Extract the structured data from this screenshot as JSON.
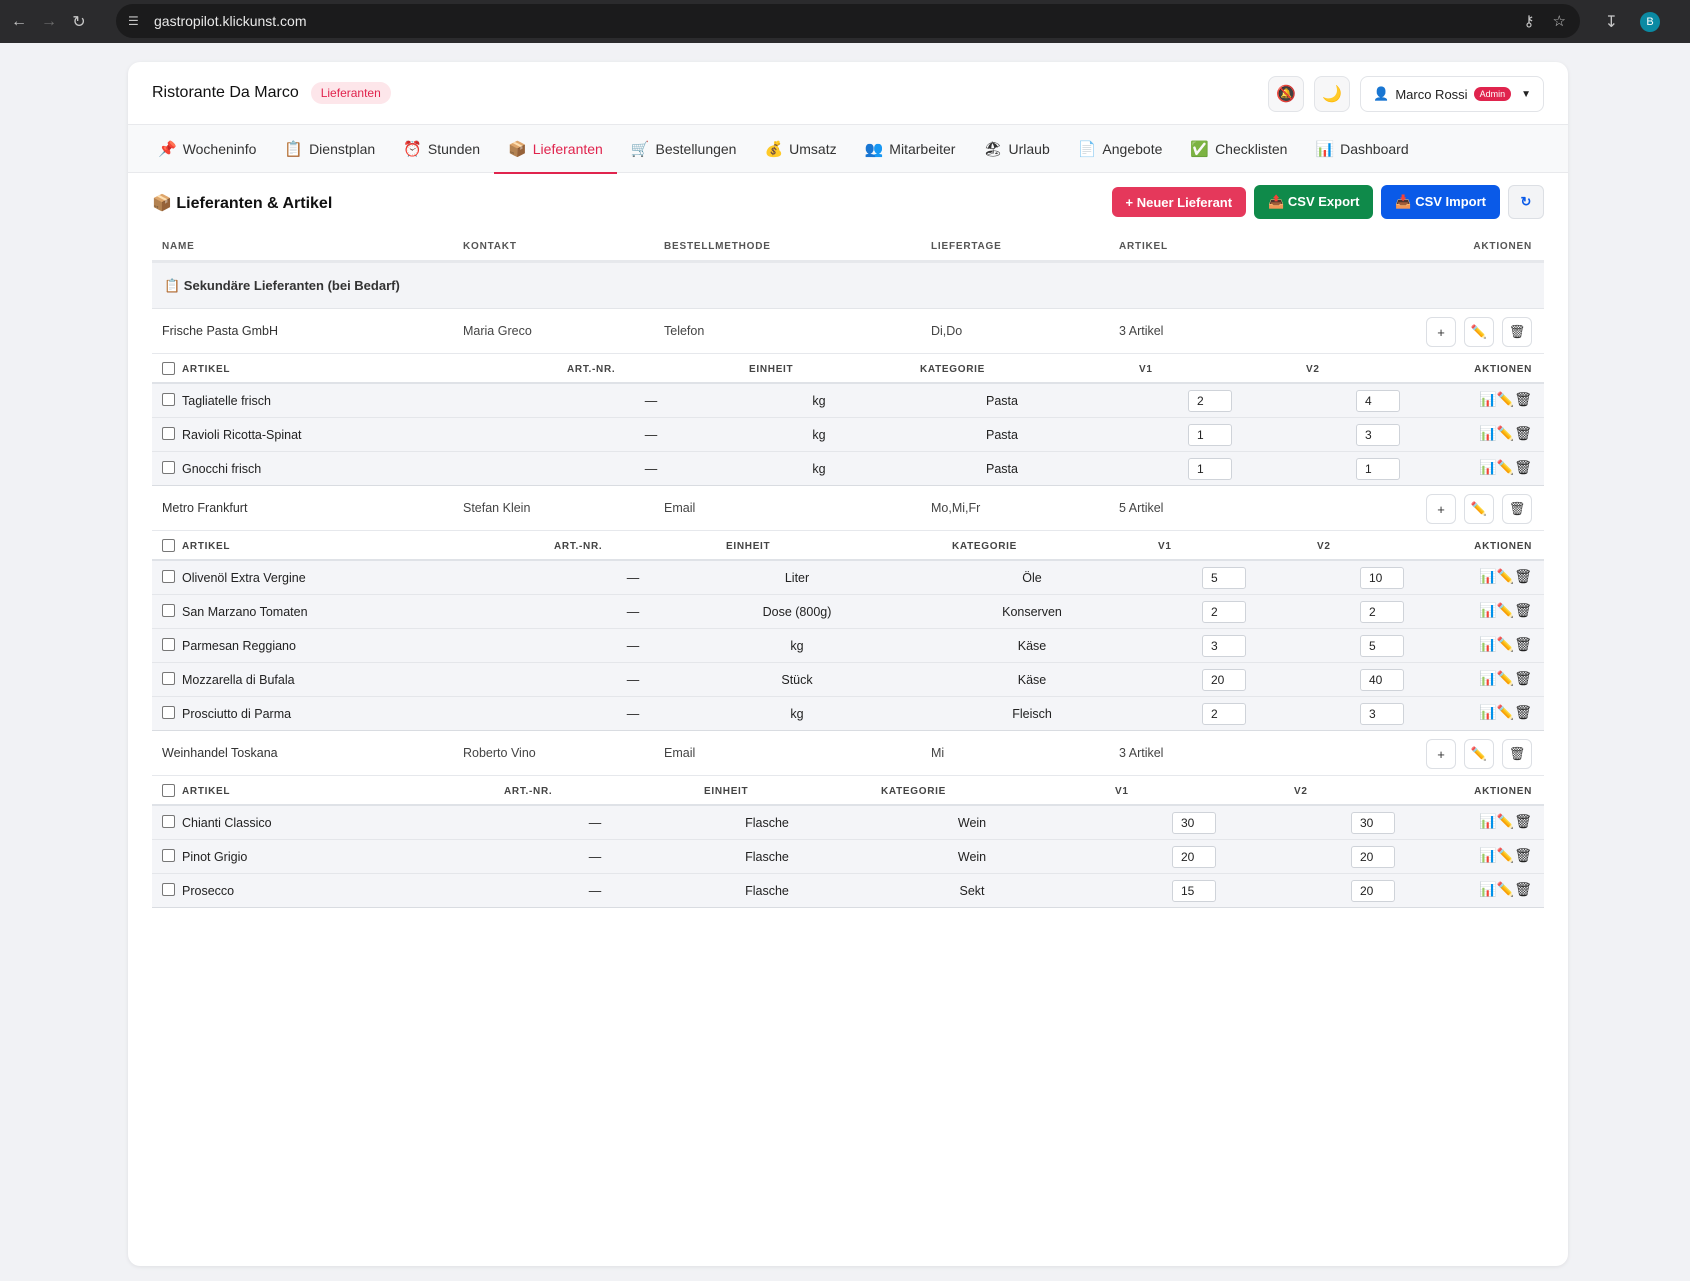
{
  "browser": {
    "url": "gastropilot.klickunst.com",
    "profile_initial": "B"
  },
  "header": {
    "restaurant": "Ristorante Da Marco",
    "page_badge": "Lieferanten",
    "user_name": "Marco Rossi",
    "user_role": "Admin"
  },
  "tabs": [
    {
      "icon": "📌",
      "label": "Wocheninfo"
    },
    {
      "icon": "📋",
      "label": "Dienstplan"
    },
    {
      "icon": "⏰",
      "label": "Stunden"
    },
    {
      "icon": "📦",
      "label": "Lieferanten"
    },
    {
      "icon": "🛒",
      "label": "Bestellungen"
    },
    {
      "icon": "💰",
      "label": "Umsatz"
    },
    {
      "icon": "👥",
      "label": "Mitarbeiter"
    },
    {
      "icon": "🏖",
      "label": "Urlaub"
    },
    {
      "icon": "📄",
      "label": "Angebote"
    },
    {
      "icon": "✅",
      "label": "Checklisten"
    },
    {
      "icon": "📊",
      "label": "Dashboard"
    }
  ],
  "section": {
    "title": "📦 Lieferanten & Artikel",
    "btn_new": "+ Neuer Lieferant",
    "btn_export": "📤 CSV Export",
    "btn_import": "📥 CSV Import"
  },
  "columns": {
    "name": "NAME",
    "kontakt": "KONTAKT",
    "methode": "BESTELLMETHODE",
    "liefertage": "LIEFERTAGE",
    "artikel": "ARTIKEL",
    "aktionen": "AKTIONEN"
  },
  "group_label": "📋 Sekundäre Lieferanten (bei Bedarf)",
  "article_columns": {
    "artikel": "ARTIKEL",
    "artnr": "ART.-NR.",
    "einheit": "EINHEIT",
    "kategorie": "KATEGORIE",
    "v1": "V1",
    "v2": "V2",
    "aktionen": "AKTIONEN"
  },
  "suppliers": [
    {
      "name": "Frische Pasta GmbH",
      "kontakt": "Maria Greco",
      "methode": "Telefon",
      "liefertage": "Di,Do",
      "artikel_count": "3 Artikel",
      "articles": [
        {
          "name": "Tagliatelle frisch",
          "artnr": "—",
          "einheit": "kg",
          "kategorie": "Pasta",
          "v1": "2",
          "v2": "4"
        },
        {
          "name": "Ravioli Ricotta-Spinat",
          "artnr": "—",
          "einheit": "kg",
          "kategorie": "Pasta",
          "v1": "1",
          "v2": "3"
        },
        {
          "name": "Gnocchi frisch",
          "artnr": "—",
          "einheit": "kg",
          "kategorie": "Pasta",
          "v1": "1",
          "v2": "1"
        }
      ]
    },
    {
      "name": "Metro Frankfurt",
      "kontakt": "Stefan Klein",
      "methode": "Email",
      "liefertage": "Mo,Mi,Fr",
      "artikel_count": "5 Artikel",
      "articles": [
        {
          "name": "Olivenöl Extra Vergine",
          "artnr": "—",
          "einheit": "Liter",
          "kategorie": "Öle",
          "v1": "5",
          "v2": "10"
        },
        {
          "name": "San Marzano Tomaten",
          "artnr": "—",
          "einheit": "Dose (800g)",
          "kategorie": "Konserven",
          "v1": "2",
          "v2": "2"
        },
        {
          "name": "Parmesan Reggiano",
          "artnr": "—",
          "einheit": "kg",
          "kategorie": "Käse",
          "v1": "3",
          "v2": "5"
        },
        {
          "name": "Mozzarella di Bufala",
          "artnr": "—",
          "einheit": "Stück",
          "kategorie": "Käse",
          "v1": "20",
          "v2": "40"
        },
        {
          "name": "Prosciutto di Parma",
          "artnr": "—",
          "einheit": "kg",
          "kategorie": "Fleisch",
          "v1": "2",
          "v2": "3"
        }
      ]
    },
    {
      "name": "Weinhandel Toskana",
      "kontakt": "Roberto Vino",
      "methode": "Email",
      "liefertage": "Mi",
      "artikel_count": "3 Artikel",
      "articles": [
        {
          "name": "Chianti Classico",
          "artnr": "—",
          "einheit": "Flasche",
          "kategorie": "Wein",
          "v1": "30",
          "v2": "30"
        },
        {
          "name": "Pinot Grigio",
          "artnr": "—",
          "einheit": "Flasche",
          "kategorie": "Wein",
          "v1": "20",
          "v2": "20"
        },
        {
          "name": "Prosecco",
          "artnr": "—",
          "einheit": "Flasche",
          "kategorie": "Sekt",
          "v1": "15",
          "v2": "20"
        }
      ]
    }
  ]
}
